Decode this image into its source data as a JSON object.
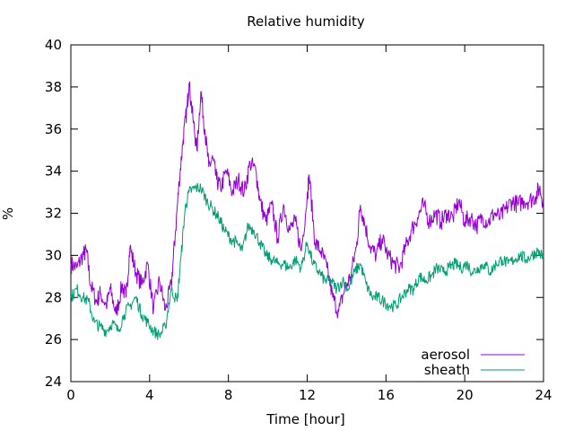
{
  "chart_data": {
    "type": "line",
    "title": "Relative humidity",
    "xlabel": "Time [hour]",
    "ylabel": "%",
    "xlim": [
      0,
      24
    ],
    "ylim": [
      24,
      40
    ],
    "xticks": [
      0,
      4,
      8,
      12,
      16,
      20,
      24
    ],
    "yticks": [
      24,
      26,
      28,
      30,
      32,
      34,
      36,
      38,
      40
    ],
    "grid": false,
    "legend_position": "bottom-right",
    "series": [
      {
        "name": "aerosol",
        "color": "#9400d3",
        "points": [
          [
            0,
            29.6
          ],
          [
            0.3,
            29.4
          ],
          [
            0.6,
            30.0
          ],
          [
            0.8,
            30.2
          ],
          [
            1.0,
            28.6
          ],
          [
            1.3,
            27.8
          ],
          [
            1.5,
            28.2
          ],
          [
            1.8,
            27.6
          ],
          [
            2.0,
            28.4
          ],
          [
            2.3,
            27.2
          ],
          [
            2.6,
            28.6
          ],
          [
            2.8,
            28.0
          ],
          [
            3.0,
            30.4
          ],
          [
            3.3,
            29.2
          ],
          [
            3.6,
            28.6
          ],
          [
            3.9,
            29.6
          ],
          [
            4.2,
            27.4
          ],
          [
            4.5,
            28.8
          ],
          [
            4.8,
            27.4
          ],
          [
            5.1,
            28.6
          ],
          [
            5.3,
            31.0
          ],
          [
            5.5,
            33.5
          ],
          [
            5.7,
            35.5
          ],
          [
            5.9,
            37.0
          ],
          [
            6.0,
            38.2
          ],
          [
            6.2,
            36.5
          ],
          [
            6.4,
            35.0
          ],
          [
            6.6,
            37.8
          ],
          [
            6.8,
            36.0
          ],
          [
            7.0,
            34.2
          ],
          [
            7.2,
            34.6
          ],
          [
            7.4,
            33.6
          ],
          [
            7.6,
            33.2
          ],
          [
            7.9,
            34.0
          ],
          [
            8.2,
            33.0
          ],
          [
            8.5,
            33.6
          ],
          [
            8.8,
            33.0
          ],
          [
            9.1,
            34.4
          ],
          [
            9.4,
            34.0
          ],
          [
            9.6,
            32.6
          ],
          [
            9.9,
            31.6
          ],
          [
            10.2,
            32.4
          ],
          [
            10.5,
            30.8
          ],
          [
            10.8,
            32.4
          ],
          [
            11.1,
            31.2
          ],
          [
            11.4,
            31.6
          ],
          [
            11.7,
            30.2
          ],
          [
            12.0,
            32.8
          ],
          [
            12.1,
            33.8
          ],
          [
            12.4,
            30.6
          ],
          [
            12.7,
            30.2
          ],
          [
            13.0,
            29.4
          ],
          [
            13.3,
            28.0
          ],
          [
            13.6,
            27.3
          ],
          [
            13.9,
            28.4
          ],
          [
            14.2,
            29.0
          ],
          [
            14.5,
            30.4
          ],
          [
            14.7,
            32.4
          ],
          [
            14.9,
            31.6
          ],
          [
            15.2,
            30.4
          ],
          [
            15.5,
            30.0
          ],
          [
            15.8,
            30.8
          ],
          [
            16.1,
            30.0
          ],
          [
            16.4,
            29.6
          ],
          [
            16.7,
            29.4
          ],
          [
            17.0,
            30.4
          ],
          [
            17.3,
            31.2
          ],
          [
            17.6,
            31.8
          ],
          [
            17.9,
            32.4
          ],
          [
            18.2,
            31.6
          ],
          [
            18.5,
            32.0
          ],
          [
            18.8,
            31.6
          ],
          [
            19.1,
            32.0
          ],
          [
            19.4,
            31.8
          ],
          [
            19.7,
            32.6
          ],
          [
            20.0,
            31.6
          ],
          [
            20.3,
            31.8
          ],
          [
            20.6,
            31.4
          ],
          [
            20.9,
            31.8
          ],
          [
            21.2,
            31.6
          ],
          [
            21.5,
            32.0
          ],
          [
            21.8,
            31.8
          ],
          [
            22.1,
            32.2
          ],
          [
            22.4,
            32.6
          ],
          [
            22.7,
            32.4
          ],
          [
            23.0,
            32.6
          ],
          [
            23.3,
            32.6
          ],
          [
            23.6,
            32.8
          ],
          [
            23.8,
            33.2
          ],
          [
            24.0,
            32.5
          ]
        ]
      },
      {
        "name": "sheath",
        "color": "#009e73",
        "points": [
          [
            0,
            28.0
          ],
          [
            0.3,
            28.4
          ],
          [
            0.6,
            28.0
          ],
          [
            0.9,
            27.8
          ],
          [
            1.2,
            26.8
          ],
          [
            1.5,
            26.6
          ],
          [
            1.8,
            26.4
          ],
          [
            2.1,
            26.8
          ],
          [
            2.4,
            26.4
          ],
          [
            2.7,
            27.2
          ],
          [
            3.0,
            27.6
          ],
          [
            3.3,
            28.0
          ],
          [
            3.6,
            27.2
          ],
          [
            3.9,
            26.8
          ],
          [
            4.2,
            26.4
          ],
          [
            4.5,
            26.2
          ],
          [
            4.8,
            26.6
          ],
          [
            5.1,
            28.4
          ],
          [
            5.4,
            27.8
          ],
          [
            5.6,
            30.0
          ],
          [
            5.8,
            32.2
          ],
          [
            6.0,
            33.0
          ],
          [
            6.3,
            33.2
          ],
          [
            6.6,
            33.2
          ],
          [
            6.9,
            32.6
          ],
          [
            7.2,
            32.2
          ],
          [
            7.5,
            31.8
          ],
          [
            7.8,
            31.2
          ],
          [
            8.1,
            30.8
          ],
          [
            8.4,
            30.6
          ],
          [
            8.7,
            30.2
          ],
          [
            9.0,
            31.4
          ],
          [
            9.3,
            31.2
          ],
          [
            9.6,
            30.6
          ],
          [
            9.9,
            30.0
          ],
          [
            10.2,
            29.8
          ],
          [
            10.5,
            29.6
          ],
          [
            10.8,
            29.6
          ],
          [
            11.1,
            29.4
          ],
          [
            11.4,
            29.8
          ],
          [
            11.7,
            29.4
          ],
          [
            12.0,
            30.6
          ],
          [
            12.3,
            29.6
          ],
          [
            12.6,
            29.2
          ],
          [
            12.9,
            28.8
          ],
          [
            13.2,
            28.8
          ],
          [
            13.5,
            28.4
          ],
          [
            13.8,
            28.8
          ],
          [
            14.1,
            28.4
          ],
          [
            14.4,
            29.2
          ],
          [
            14.7,
            29.6
          ],
          [
            15.0,
            28.6
          ],
          [
            15.3,
            28.0
          ],
          [
            15.6,
            28.0
          ],
          [
            15.9,
            27.8
          ],
          [
            16.2,
            27.6
          ],
          [
            16.5,
            27.6
          ],
          [
            16.8,
            28.0
          ],
          [
            17.1,
            28.4
          ],
          [
            17.4,
            28.4
          ],
          [
            17.7,
            29.0
          ],
          [
            18.0,
            28.8
          ],
          [
            18.3,
            29.0
          ],
          [
            18.6,
            29.4
          ],
          [
            18.9,
            29.2
          ],
          [
            19.2,
            29.4
          ],
          [
            19.5,
            29.6
          ],
          [
            19.8,
            29.4
          ],
          [
            20.1,
            29.6
          ],
          [
            20.4,
            29.2
          ],
          [
            20.7,
            29.4
          ],
          [
            21.0,
            29.6
          ],
          [
            21.3,
            29.2
          ],
          [
            21.6,
            29.6
          ],
          [
            21.9,
            29.8
          ],
          [
            22.2,
            29.6
          ],
          [
            22.5,
            29.8
          ],
          [
            22.8,
            30.0
          ],
          [
            23.1,
            29.8
          ],
          [
            23.4,
            30.0
          ],
          [
            23.7,
            30.2
          ],
          [
            24.0,
            29.9
          ]
        ]
      }
    ]
  }
}
